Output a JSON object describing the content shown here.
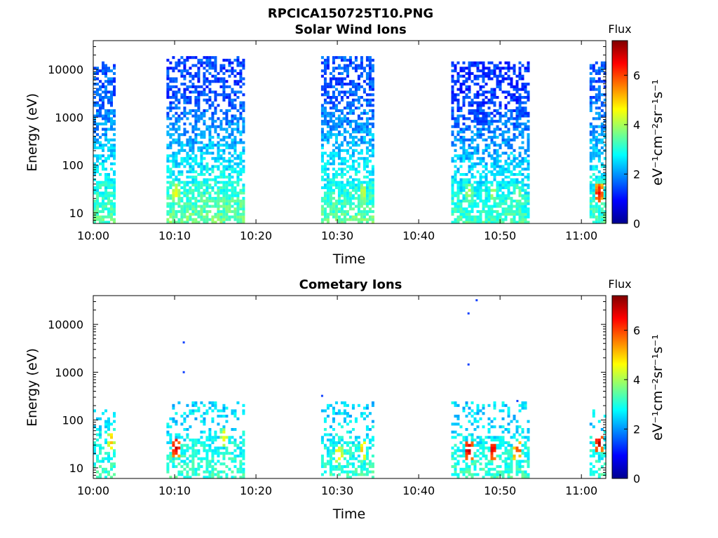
{
  "figure": {
    "title": "RPCICA150725T10.PNG"
  },
  "colorbar": {
    "title": "Flux",
    "label": "eV⁻¹cm⁻²sr⁻¹s⁻¹",
    "range": [
      0,
      7.4
    ],
    "ticks": [
      "0",
      "2",
      "4",
      "6"
    ],
    "colors": [
      "#00008f",
      "#0000ff",
      "#0080ff",
      "#00ffff",
      "#80ff80",
      "#ffff00",
      "#ff8000",
      "#ff0000",
      "#800000"
    ]
  },
  "chart_data": [
    {
      "type": "heatmap",
      "title": "Solar Wind Ions",
      "xlabel": "Time",
      "ylabel": "Energy (eV)",
      "y_scale": "log",
      "xlim": [
        "10:00",
        "11:03"
      ],
      "ylim": [
        6,
        40000
      ],
      "x_ticks": [
        "10:00",
        "10:10",
        "10:20",
        "10:30",
        "10:40",
        "10:50",
        "11:00"
      ],
      "y_ticks": [
        "10",
        "100",
        "1000",
        "10000"
      ],
      "colorbar_title": "Flux",
      "colorbar_range": [
        0,
        7.4
      ],
      "data_blocks": [
        {
          "start": "10:00",
          "end": "10:02",
          "energy_top": 14000,
          "low_energy_flux": 3.4,
          "high_energy_flux": 1.6,
          "peaks": []
        },
        {
          "start": "10:09",
          "end": "10:18",
          "energy_top": 17000,
          "low_energy_flux": 3.6,
          "high_energy_flux": 1.4,
          "peaks": [
            {
              "time": "10:10",
              "energy": 25,
              "flux": 4.8
            }
          ]
        },
        {
          "start": "10:28",
          "end": "10:34",
          "energy_top": 18000,
          "low_energy_flux": 3.5,
          "high_energy_flux": 1.5,
          "peaks": [
            {
              "time": "10:33",
              "energy": 25,
              "flux": 4.6
            }
          ]
        },
        {
          "start": "10:44",
          "end": "10:53",
          "energy_top": 14000,
          "low_energy_flux": 3.3,
          "high_energy_flux": 1.3,
          "peaks": [
            {
              "time": "10:46",
              "energy": 25,
              "flux": 4.4
            },
            {
              "time": "10:49",
              "energy": 25,
              "flux": 4.4
            },
            {
              "time": "10:52",
              "energy": 25,
              "flux": 4.2
            }
          ]
        },
        {
          "start": "11:01",
          "end": "11:03",
          "energy_top": 14000,
          "low_energy_flux": 3.3,
          "high_energy_flux": 1.6,
          "peaks": [
            {
              "time": "11:02",
              "energy": 25,
              "flux": 6.6
            }
          ]
        }
      ]
    },
    {
      "type": "heatmap",
      "title": "Cometary Ions",
      "xlabel": "Time",
      "ylabel": "Energy (eV)",
      "y_scale": "log",
      "xlim": [
        "10:00",
        "11:03"
      ],
      "ylim": [
        6,
        40000
      ],
      "x_ticks": [
        "10:00",
        "10:10",
        "10:20",
        "10:30",
        "10:40",
        "10:50",
        "11:00"
      ],
      "y_ticks": [
        "10",
        "100",
        "1000",
        "10000"
      ],
      "colorbar_title": "Flux",
      "colorbar_range": [
        0,
        7.4
      ],
      "data_blocks": [
        {
          "start": "10:00",
          "end": "10:02",
          "energy_top": 160,
          "low_energy_flux": 3.2,
          "high_energy_flux": 2.6,
          "peaks": [
            {
              "time": "10:02",
              "energy": 35,
              "flux": 5.2
            }
          ]
        },
        {
          "start": "10:09",
          "end": "10:18",
          "energy_top": 240,
          "low_energy_flux": 3.2,
          "high_energy_flux": 2.5,
          "peaks": [
            {
              "time": "10:10",
              "energy": 25,
              "flux": 6.8
            },
            {
              "time": "10:16",
              "energy": 40,
              "flux": 5.0
            }
          ]
        },
        {
          "start": "10:28",
          "end": "10:34",
          "energy_top": 240,
          "low_energy_flux": 3.2,
          "high_energy_flux": 2.5,
          "peaks": [
            {
              "time": "10:30",
              "energy": 18,
              "flux": 5.2
            },
            {
              "time": "10:33",
              "energy": 22,
              "flux": 5.4
            }
          ]
        },
        {
          "start": "10:44",
          "end": "10:53",
          "energy_top": 220,
          "low_energy_flux": 3.2,
          "high_energy_flux": 2.5,
          "peaks": [
            {
              "time": "10:46",
              "energy": 22,
              "flux": 7.0
            },
            {
              "time": "10:49",
              "energy": 22,
              "flux": 6.8
            },
            {
              "time": "10:52",
              "energy": 22,
              "flux": 6.2
            }
          ]
        },
        {
          "start": "11:01",
          "end": "11:03",
          "energy_top": 160,
          "low_energy_flux": 3.2,
          "high_energy_flux": 2.5,
          "peaks": [
            {
              "time": "11:02",
              "energy": 30,
              "flux": 7.0
            }
          ]
        }
      ],
      "isolated_points": [
        {
          "time": "10:11",
          "energy": 4200
        },
        {
          "time": "10:11",
          "energy": 1000
        },
        {
          "time": "10:28",
          "energy": 320
        },
        {
          "time": "10:46",
          "energy": 17000
        },
        {
          "time": "10:46",
          "energy": 1450
        },
        {
          "time": "10:47",
          "energy": 32000
        },
        {
          "time": "10:52",
          "energy": 250
        }
      ]
    }
  ]
}
